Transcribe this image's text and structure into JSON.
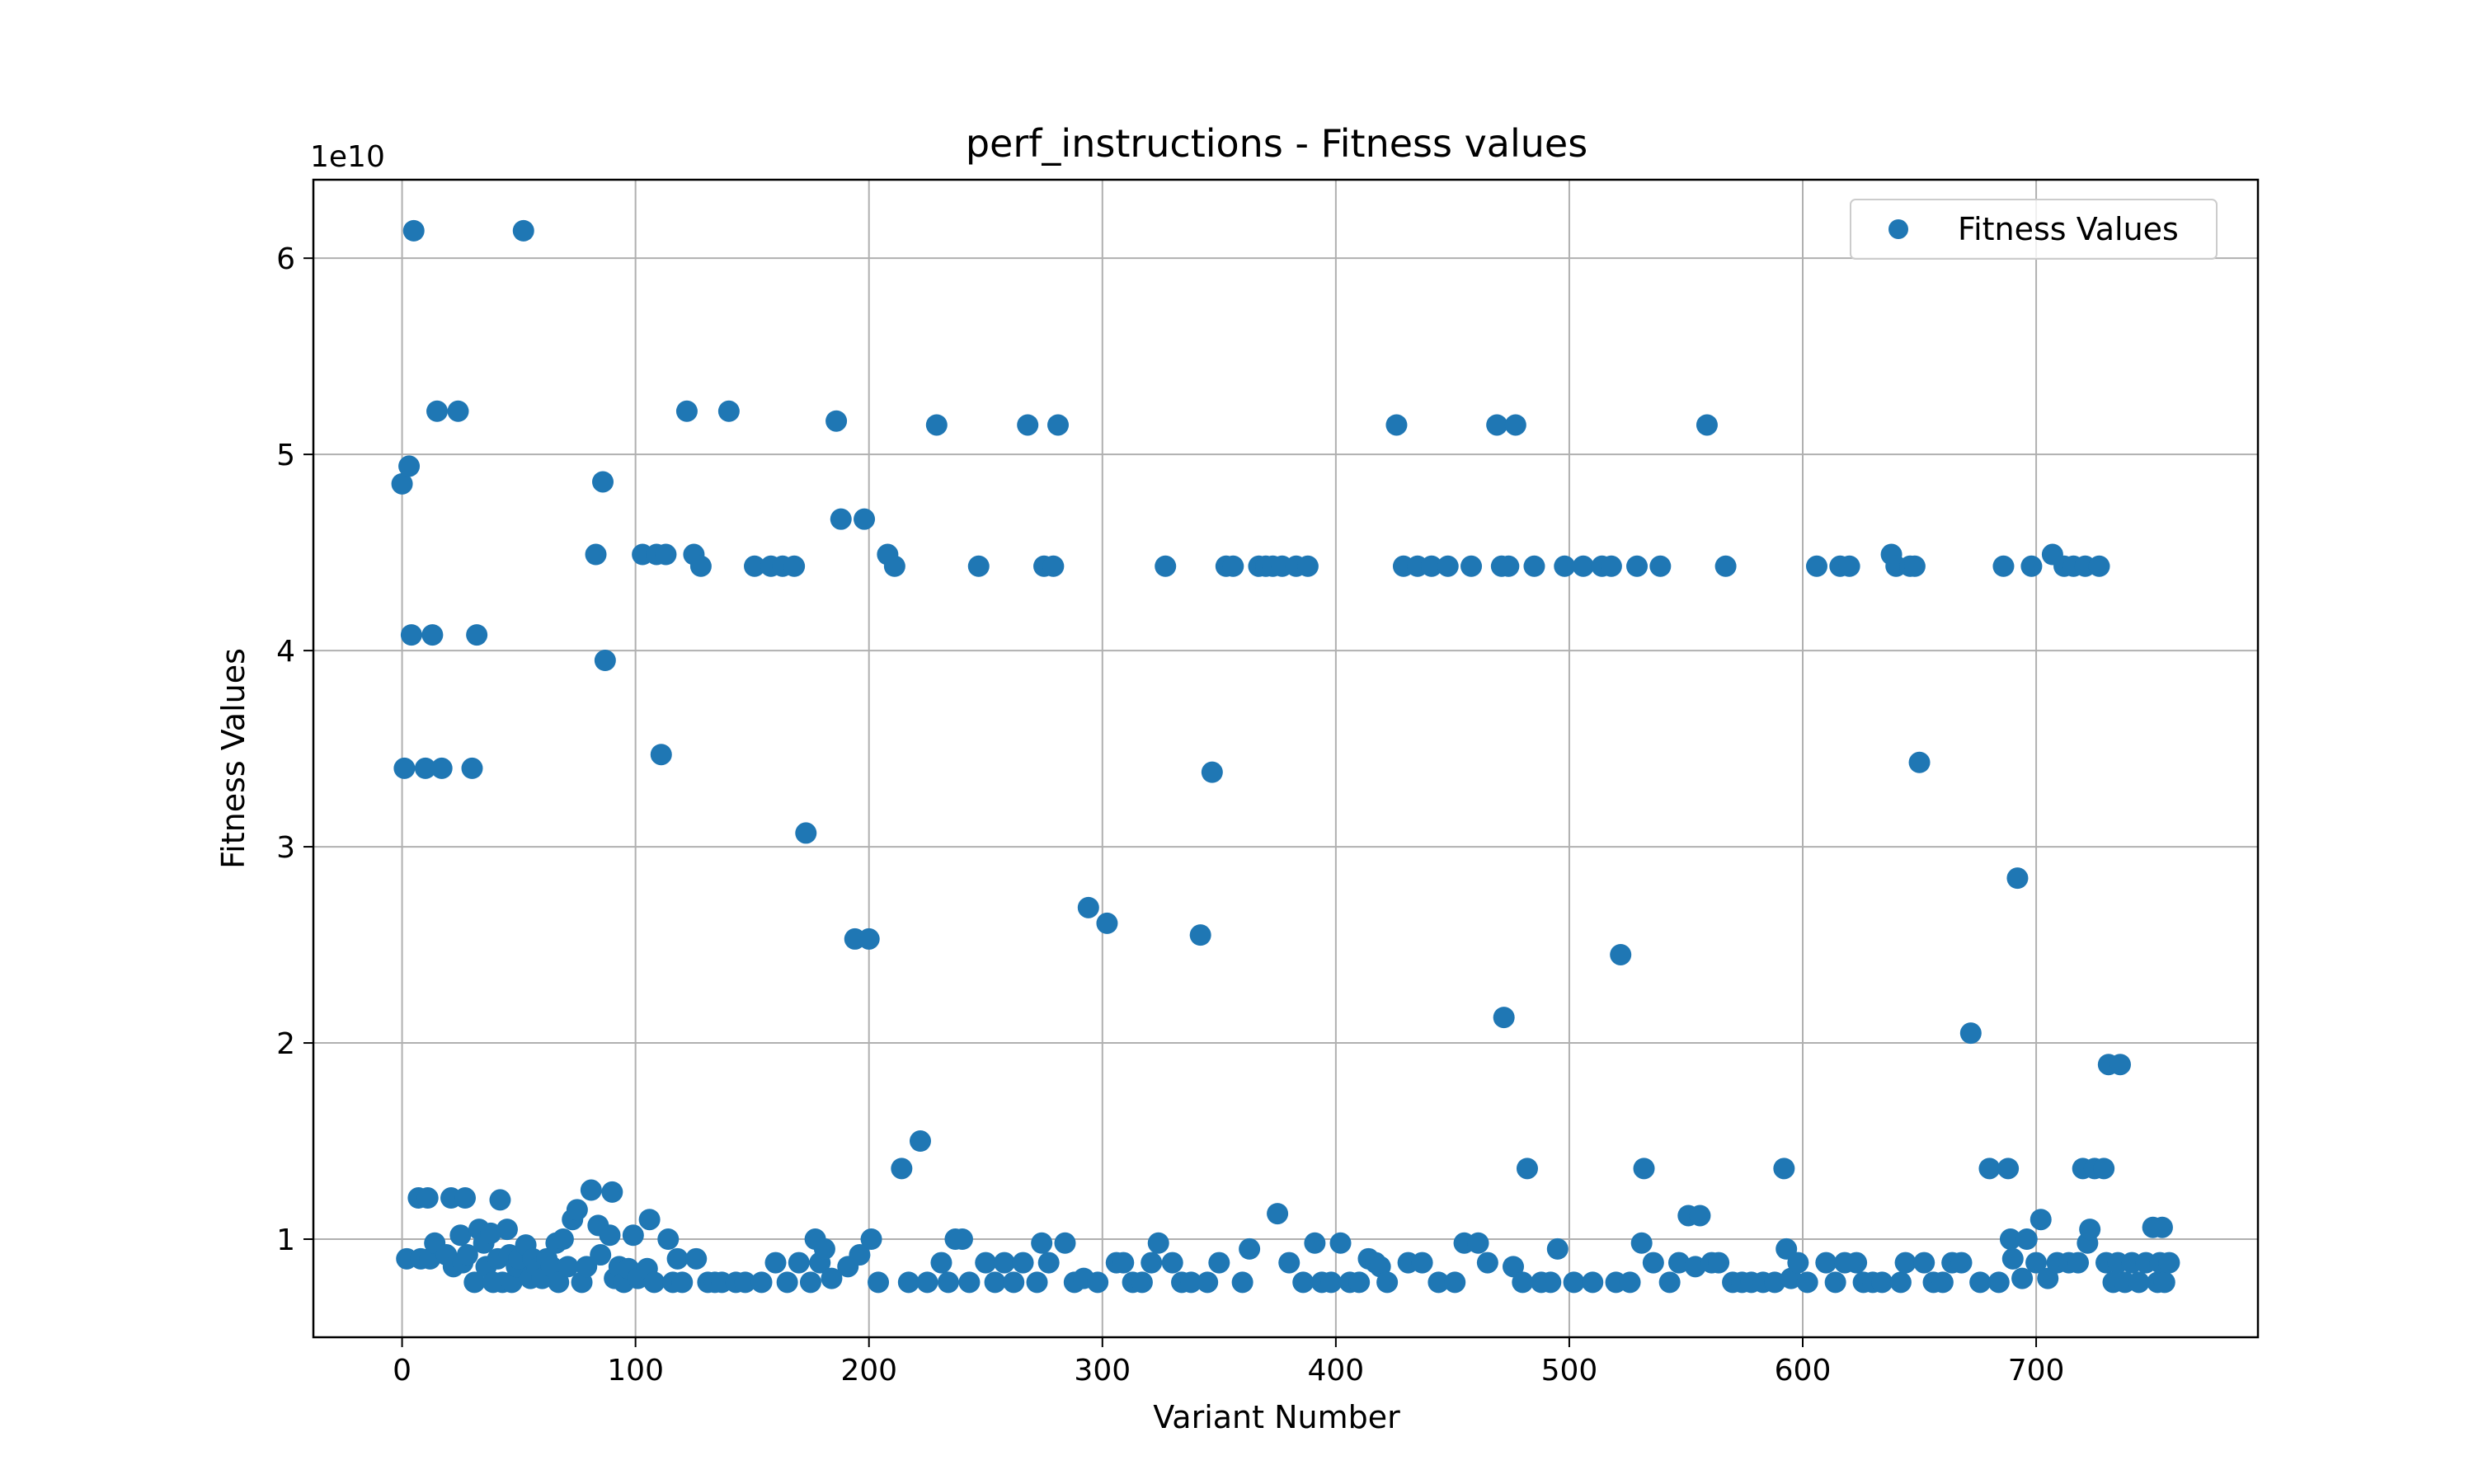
{
  "chart_data": {
    "type": "scatter",
    "title": "perf_instructions - Fitness values",
    "xlabel": "Variant Number",
    "ylabel": "Fitness Values",
    "y_offset_text": "1e10",
    "y_scale_multiplier": 10000000000,
    "xlim": [
      -38,
      795
    ],
    "ylim": [
      0.5,
      6.4
    ],
    "x_ticks": [
      0,
      100,
      200,
      300,
      400,
      500,
      600,
      700
    ],
    "x_tick_labels": [
      "0",
      "100",
      "200",
      "300",
      "400",
      "500",
      "600",
      "700"
    ],
    "y_ticks": [
      1,
      2,
      3,
      4,
      5,
      6
    ],
    "y_tick_labels": [
      "1",
      "2",
      "3",
      "4",
      "5",
      "6"
    ],
    "grid": true,
    "legend_position": "top-right",
    "color": "#1f77b4",
    "series": [
      {
        "name": "Fitness Values",
        "points": [
          [
            0,
            4.85
          ],
          [
            1,
            3.4
          ],
          [
            2,
            0.9
          ],
          [
            3,
            4.94
          ],
          [
            4,
            4.08
          ],
          [
            5,
            6.14
          ],
          [
            7,
            1.21
          ],
          [
            8,
            0.9
          ],
          [
            10,
            3.4
          ],
          [
            11,
            1.21
          ],
          [
            12,
            0.9
          ],
          [
            13,
            4.08
          ],
          [
            14,
            0.98
          ],
          [
            15,
            5.22
          ],
          [
            17,
            3.4
          ],
          [
            19,
            0.92
          ],
          [
            21,
            1.21
          ],
          [
            22,
            0.86
          ],
          [
            24,
            5.22
          ],
          [
            25,
            1.02
          ],
          [
            26,
            0.88
          ],
          [
            27,
            1.21
          ],
          [
            28,
            0.92
          ],
          [
            30,
            3.4
          ],
          [
            31,
            0.78
          ],
          [
            32,
            4.08
          ],
          [
            33,
            1.05
          ],
          [
            35,
            0.98
          ],
          [
            36,
            0.86
          ],
          [
            38,
            1.03
          ],
          [
            39,
            0.78
          ],
          [
            41,
            0.9
          ],
          [
            42,
            1.2
          ],
          [
            43,
            0.78
          ],
          [
            45,
            1.05
          ],
          [
            46,
            0.92
          ],
          [
            47,
            0.78
          ],
          [
            49,
            0.86
          ],
          [
            50,
            0.9
          ],
          [
            52,
            6.14
          ],
          [
            53,
            0.97
          ],
          [
            55,
            0.8
          ],
          [
            56,
            0.9
          ],
          [
            58,
            0.85
          ],
          [
            60,
            0.8
          ],
          [
            62,
            0.9
          ],
          [
            64,
            0.86
          ],
          [
            66,
            0.98
          ],
          [
            67,
            0.78
          ],
          [
            69,
            1.0
          ],
          [
            71,
            0.86
          ],
          [
            73,
            1.1
          ],
          [
            75,
            1.15
          ],
          [
            77,
            0.78
          ],
          [
            79,
            0.86
          ],
          [
            81,
            1.25
          ],
          [
            83,
            4.49
          ],
          [
            84,
            1.07
          ],
          [
            85,
            0.92
          ],
          [
            86,
            4.86
          ],
          [
            87,
            3.95
          ],
          [
            89,
            1.02
          ],
          [
            90,
            1.24
          ],
          [
            91,
            0.8
          ],
          [
            93,
            0.86
          ],
          [
            95,
            0.78
          ],
          [
            97,
            0.85
          ],
          [
            99,
            1.02
          ],
          [
            101,
            0.8
          ],
          [
            103,
            4.49
          ],
          [
            105,
            0.85
          ],
          [
            106,
            1.1
          ],
          [
            108,
            0.78
          ],
          [
            109,
            4.49
          ],
          [
            111,
            3.47
          ],
          [
            113,
            4.49
          ],
          [
            114,
            1.0
          ],
          [
            116,
            0.78
          ],
          [
            118,
            0.9
          ],
          [
            120,
            0.78
          ],
          [
            122,
            5.22
          ],
          [
            125,
            4.49
          ],
          [
            126,
            0.9
          ],
          [
            128,
            4.43
          ],
          [
            131,
            0.78
          ],
          [
            134,
            0.78
          ],
          [
            137,
            0.78
          ],
          [
            140,
            5.22
          ],
          [
            143,
            0.78
          ],
          [
            147,
            0.78
          ],
          [
            151,
            4.43
          ],
          [
            154,
            0.78
          ],
          [
            158,
            4.43
          ],
          [
            160,
            0.88
          ],
          [
            163,
            4.43
          ],
          [
            165,
            0.78
          ],
          [
            168,
            4.43
          ],
          [
            170,
            0.88
          ],
          [
            173,
            3.07
          ],
          [
            175,
            0.78
          ],
          [
            177,
            1.0
          ],
          [
            179,
            0.88
          ],
          [
            181,
            0.95
          ],
          [
            184,
            0.8
          ],
          [
            186,
            5.17
          ],
          [
            188,
            4.67
          ],
          [
            191,
            0.86
          ],
          [
            194,
            2.53
          ],
          [
            196,
            0.92
          ],
          [
            198,
            4.67
          ],
          [
            200,
            2.53
          ],
          [
            201,
            1.0
          ],
          [
            204,
            0.78
          ],
          [
            208,
            4.49
          ],
          [
            211,
            4.43
          ],
          [
            214,
            1.36
          ],
          [
            217,
            0.78
          ],
          [
            222,
            1.5
          ],
          [
            225,
            0.78
          ],
          [
            229,
            5.15
          ],
          [
            231,
            0.88
          ],
          [
            234,
            0.78
          ],
          [
            237,
            1.0
          ],
          [
            240,
            1.0
          ],
          [
            243,
            0.78
          ],
          [
            247,
            4.43
          ],
          [
            250,
            0.88
          ],
          [
            254,
            0.78
          ],
          [
            258,
            0.88
          ],
          [
            262,
            0.78
          ],
          [
            266,
            0.88
          ],
          [
            268,
            5.15
          ],
          [
            272,
            0.78
          ],
          [
            274,
            0.98
          ],
          [
            275,
            4.43
          ],
          [
            277,
            0.88
          ],
          [
            279,
            4.43
          ],
          [
            281,
            5.15
          ],
          [
            284,
            0.98
          ],
          [
            288,
            0.78
          ],
          [
            292,
            0.8
          ],
          [
            294,
            2.69
          ],
          [
            298,
            0.78
          ],
          [
            302,
            2.61
          ],
          [
            306,
            0.88
          ],
          [
            309,
            0.88
          ],
          [
            313,
            0.78
          ],
          [
            317,
            0.78
          ],
          [
            321,
            0.88
          ],
          [
            324,
            0.98
          ],
          [
            327,
            4.43
          ],
          [
            330,
            0.88
          ],
          [
            334,
            0.78
          ],
          [
            338,
            0.78
          ],
          [
            342,
            2.55
          ],
          [
            345,
            0.78
          ],
          [
            347,
            3.38
          ],
          [
            350,
            0.88
          ],
          [
            353,
            4.43
          ],
          [
            356,
            4.43
          ],
          [
            360,
            0.78
          ],
          [
            363,
            0.95
          ],
          [
            367,
            4.43
          ],
          [
            370,
            4.43
          ],
          [
            373,
            4.43
          ],
          [
            375,
            1.13
          ],
          [
            377,
            4.43
          ],
          [
            380,
            0.88
          ],
          [
            383,
            4.43
          ],
          [
            386,
            0.78
          ],
          [
            388,
            4.43
          ],
          [
            391,
            0.98
          ],
          [
            394,
            0.78
          ],
          [
            398,
            0.78
          ],
          [
            402,
            0.98
          ],
          [
            406,
            0.78
          ],
          [
            410,
            0.78
          ],
          [
            414,
            0.9
          ],
          [
            417,
            0.88
          ],
          [
            419,
            0.86
          ],
          [
            422,
            0.78
          ],
          [
            426,
            5.15
          ],
          [
            429,
            4.43
          ],
          [
            431,
            0.88
          ],
          [
            435,
            4.43
          ],
          [
            437,
            0.88
          ],
          [
            441,
            4.43
          ],
          [
            444,
            0.78
          ],
          [
            448,
            4.43
          ],
          [
            451,
            0.78
          ],
          [
            455,
            0.98
          ],
          [
            458,
            4.43
          ],
          [
            461,
            0.98
          ],
          [
            465,
            0.88
          ],
          [
            469,
            5.15
          ],
          [
            471,
            4.43
          ],
          [
            472,
            2.13
          ],
          [
            474,
            4.43
          ],
          [
            476,
            0.86
          ],
          [
            477,
            5.15
          ],
          [
            480,
            0.78
          ],
          [
            482,
            1.36
          ],
          [
            485,
            4.43
          ],
          [
            488,
            0.78
          ],
          [
            492,
            0.78
          ],
          [
            495,
            0.95
          ],
          [
            498,
            4.43
          ],
          [
            502,
            0.78
          ],
          [
            506,
            4.43
          ],
          [
            510,
            0.78
          ],
          [
            514,
            4.43
          ],
          [
            518,
            4.43
          ],
          [
            520,
            0.78
          ],
          [
            522,
            2.45
          ],
          [
            526,
            0.78
          ],
          [
            529,
            4.43
          ],
          [
            531,
            0.98
          ],
          [
            532,
            1.36
          ],
          [
            536,
            0.88
          ],
          [
            539,
            4.43
          ],
          [
            543,
            0.78
          ],
          [
            547,
            0.88
          ],
          [
            551,
            1.12
          ],
          [
            554,
            0.86
          ],
          [
            556,
            1.12
          ],
          [
            559,
            5.15
          ],
          [
            561,
            0.88
          ],
          [
            564,
            0.88
          ],
          [
            567,
            4.43
          ],
          [
            570,
            0.78
          ],
          [
            574,
            0.78
          ],
          [
            578,
            0.78
          ],
          [
            583,
            0.78
          ],
          [
            588,
            0.78
          ],
          [
            592,
            1.36
          ],
          [
            593,
            0.95
          ],
          [
            595,
            0.8
          ],
          [
            598,
            0.88
          ],
          [
            602,
            0.78
          ],
          [
            606,
            4.43
          ],
          [
            610,
            0.88
          ],
          [
            614,
            0.78
          ],
          [
            616,
            4.43
          ],
          [
            618,
            0.88
          ],
          [
            620,
            4.43
          ],
          [
            623,
            0.88
          ],
          [
            626,
            0.78
          ],
          [
            630,
            0.78
          ],
          [
            634,
            0.78
          ],
          [
            638,
            4.49
          ],
          [
            640,
            4.43
          ],
          [
            642,
            0.78
          ],
          [
            644,
            0.88
          ],
          [
            646,
            4.43
          ],
          [
            648,
            4.43
          ],
          [
            650,
            3.43
          ],
          [
            652,
            0.88
          ],
          [
            656,
            0.78
          ],
          [
            660,
            0.78
          ],
          [
            664,
            0.88
          ],
          [
            668,
            0.88
          ],
          [
            672,
            2.05
          ],
          [
            676,
            0.78
          ],
          [
            680,
            1.36
          ],
          [
            684,
            0.78
          ],
          [
            686,
            4.43
          ],
          [
            688,
            1.36
          ],
          [
            689,
            1.0
          ],
          [
            690,
            0.9
          ],
          [
            692,
            2.84
          ],
          [
            694,
            0.8
          ],
          [
            696,
            1.0
          ],
          [
            698,
            4.43
          ],
          [
            700,
            0.88
          ],
          [
            702,
            1.1
          ],
          [
            705,
            0.8
          ],
          [
            707,
            4.49
          ],
          [
            709,
            0.88
          ],
          [
            712,
            4.43
          ],
          [
            714,
            0.88
          ],
          [
            716,
            4.43
          ],
          [
            718,
            0.88
          ],
          [
            720,
            1.36
          ],
          [
            721,
            4.43
          ],
          [
            722,
            0.98
          ],
          [
            723,
            1.05
          ],
          [
            725,
            1.36
          ],
          [
            727,
            4.43
          ],
          [
            729,
            1.36
          ],
          [
            730,
            0.88
          ],
          [
            731,
            1.89
          ],
          [
            733,
            0.78
          ],
          [
            735,
            0.88
          ],
          [
            736,
            1.89
          ],
          [
            738,
            0.78
          ],
          [
            741,
            0.88
          ],
          [
            744,
            0.78
          ],
          [
            747,
            0.88
          ],
          [
            750,
            1.06
          ],
          [
            752,
            0.78
          ],
          [
            753,
            0.88
          ],
          [
            754,
            1.06
          ],
          [
            755,
            0.78
          ],
          [
            757,
            0.88
          ]
        ]
      }
    ]
  }
}
